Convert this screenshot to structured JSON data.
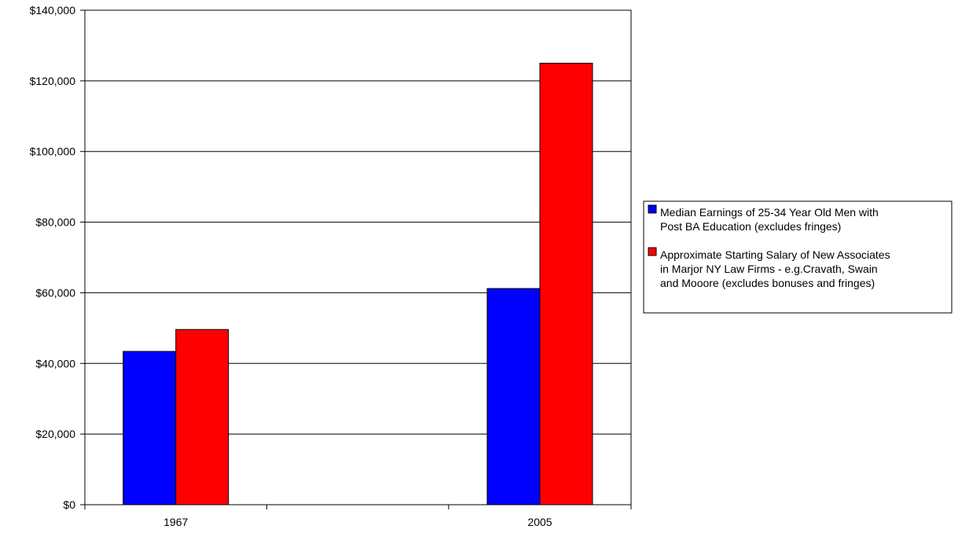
{
  "chart_data": {
    "type": "bar",
    "title": "",
    "xlabel": "",
    "ylabel": "",
    "categories": [
      "1967",
      "2005"
    ],
    "ylim": [
      0,
      140000
    ],
    "y_ticks": [
      0,
      20000,
      40000,
      60000,
      80000,
      100000,
      120000,
      140000
    ],
    "y_tick_labels": [
      "$0",
      "$20,000",
      "$40,000",
      "$60,000",
      "$80,000",
      "$100,000",
      "$120,000",
      "$140,000"
    ],
    "grid": "horizontal",
    "legend_position": "right",
    "series": [
      {
        "name": "Median Earnings of 25-34 Year Old Men with Post BA Education (excludes fringes)",
        "legend_lines": [
          "Median Earnings of 25-34 Year Old Men with",
          "Post BA Education (excludes fringes)"
        ],
        "color": "#0000ff",
        "values": [
          43400,
          61200
        ]
      },
      {
        "name": "Approximate Starting Salary of New Associates in Marjor NY Law Firms - e.g.Cravath, Swain and Mooore (excludes bonuses and fringes)",
        "legend_lines": [
          "Approximate Starting Salary of New Associates",
          "in Marjor NY Law Firms - e.g.Cravath, Swain",
          "and Mooore (excludes bonuses and fringes)"
        ],
        "color": "#ff0000",
        "values": [
          49600,
          125000
        ]
      }
    ]
  }
}
